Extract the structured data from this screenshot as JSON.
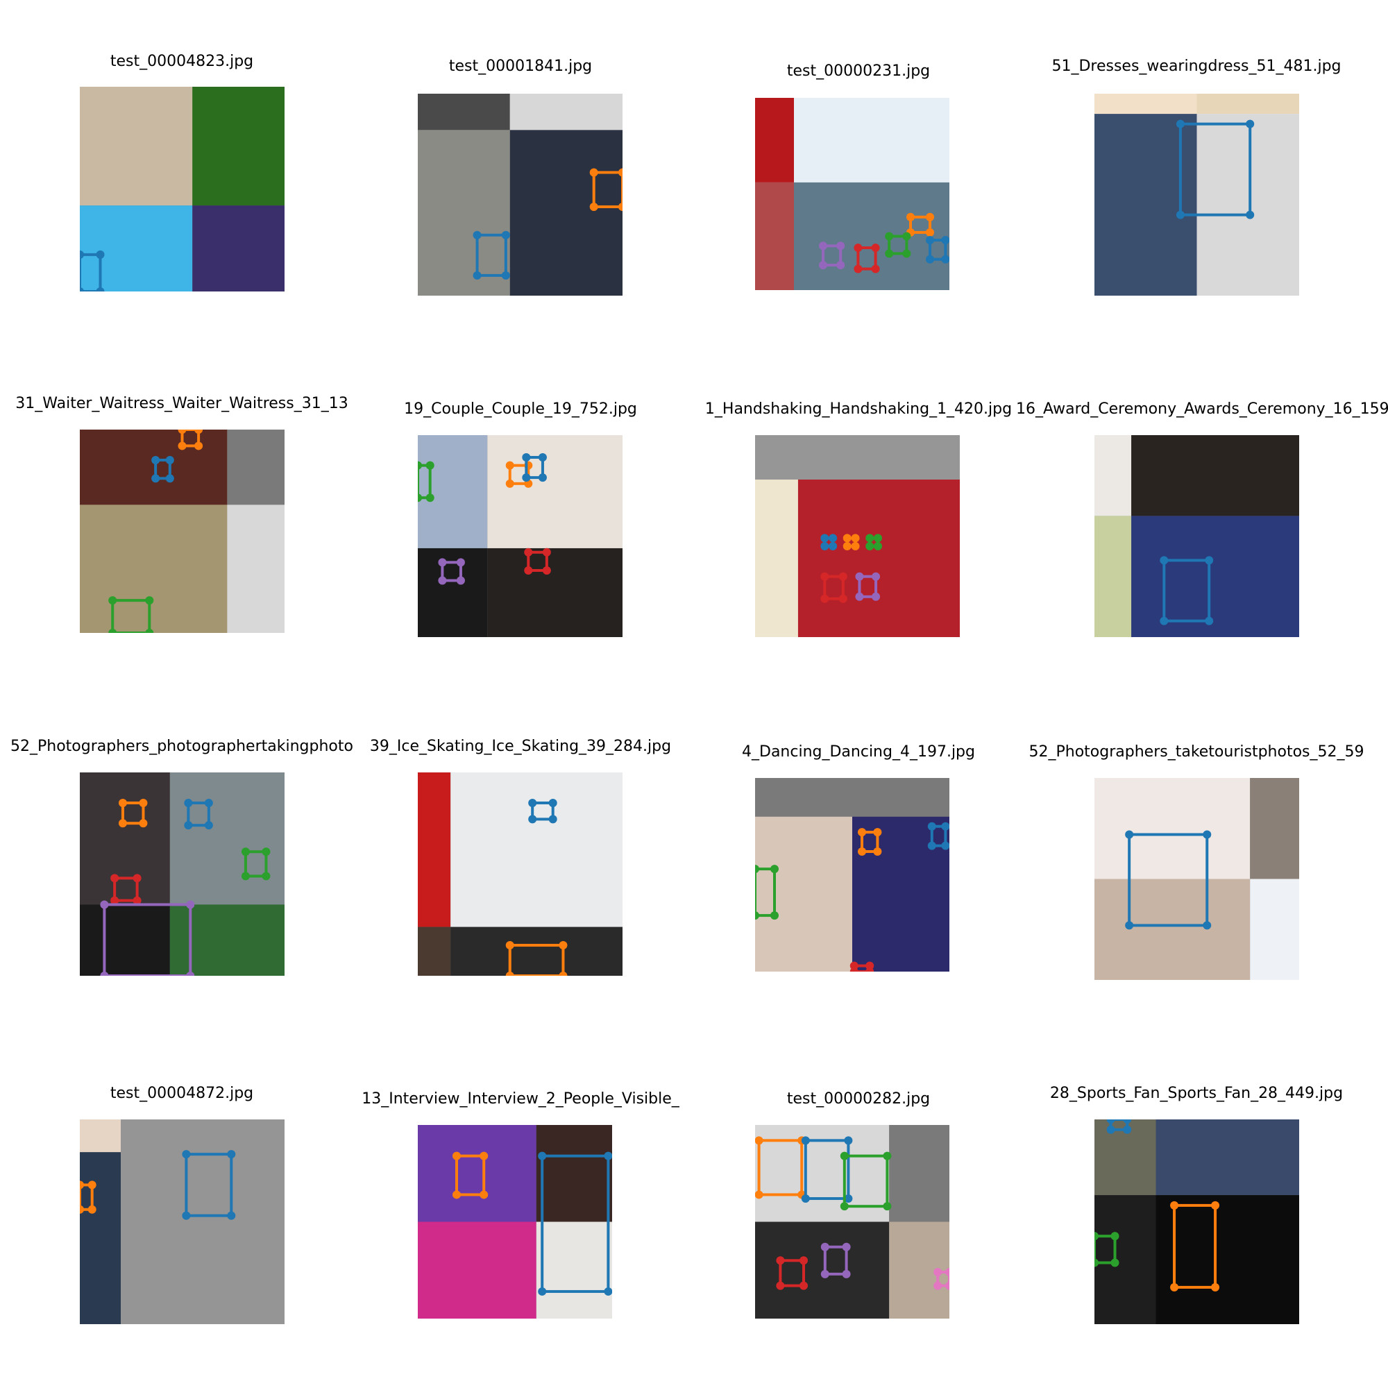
{
  "figure": {
    "background": "#ffffff",
    "panels": [
      {
        "title": "test_00004823.jpg",
        "bg": "#7a6a5c",
        "blocks": [
          [
            "#c9b9a2",
            "#2a6e1e"
          ],
          [
            "#3fb4e6",
            "#3a2f6a"
          ]
        ],
        "boxes": [
          {
            "color": "#1f77b4"
          }
        ]
      },
      {
        "title": "test_00001841.jpg",
        "bg": "#b9b6b0",
        "blocks": [
          [
            "#4a4a4a",
            "#d7d7d7"
          ],
          [
            "#8b8b86",
            "#2a3140"
          ]
        ],
        "boxes": [
          {
            "color": "#1f77b4"
          },
          {
            "color": "#ff7f0e"
          }
        ]
      },
      {
        "title": "test_00000231.jpg",
        "bg": "#d9e3ef",
        "blocks": [
          [
            "#b7181c",
            "#e6eef6"
          ],
          [
            "#b04a4a",
            "#5f7a8a"
          ]
        ],
        "boxes": [
          {
            "color": "#ff7f0e"
          },
          {
            "color": "#9467bd"
          },
          {
            "color": "#d62728"
          },
          {
            "color": "#2ca02c"
          },
          {
            "color": "#1f77b4"
          }
        ]
      },
      {
        "title": "51_Dresses_wearingdress_51_481.jpg",
        "bg": "#ffffff",
        "blocks": [
          [
            "#f2e0c8",
            "#e8d6b8"
          ],
          [
            "#3a4e6e",
            "#d9d9d9"
          ]
        ],
        "boxes": [
          {
            "color": "#1f77b4"
          }
        ]
      },
      {
        "title": "31_Waiter_Waitress_Waiter_Waitress_31_13",
        "bg": "#c8b99a",
        "blocks": [
          [
            "#5a2a22",
            "#7a7a7a"
          ],
          [
            "#a49671",
            "#d8d8d8"
          ]
        ],
        "boxes": [
          {
            "color": "#ff7f0e"
          },
          {
            "color": "#1f77b4"
          },
          {
            "color": "#2ca02c"
          }
        ]
      },
      {
        "title": "19_Couple_Couple_19_752.jpg",
        "bg": "#8c8c8c",
        "blocks": [
          [
            "#9fb0c8",
            "#e9e2da"
          ],
          [
            "#1a1a1a",
            "#262220"
          ]
        ],
        "boxes": [
          {
            "color": "#2ca02c"
          },
          {
            "color": "#ff7f0e"
          },
          {
            "color": "#1f77b4"
          },
          {
            "color": "#9467bd"
          },
          {
            "color": "#d62728"
          }
        ]
      },
      {
        "title": "1_Handshaking_Handshaking_1_420.jpg",
        "bg": "#969696",
        "blocks": [
          [
            "#969696",
            "#969696"
          ],
          [
            "#efe6d0",
            "#b5212a"
          ]
        ],
        "boxes": [
          {
            "color": "#1f77b4"
          },
          {
            "color": "#ff7f0e"
          },
          {
            "color": "#2ca02c"
          },
          {
            "color": "#d62728"
          },
          {
            "color": "#9467bd"
          }
        ]
      },
      {
        "title": "16_Award_Ceremony_Awards_Ceremony_16_159",
        "bg": "#8d8d8d",
        "blocks": [
          [
            "#ece8e4",
            "#2a2420"
          ],
          [
            "#c8d0a0",
            "#2b3a7a"
          ]
        ],
        "boxes": [
          {
            "color": "#1f77b4"
          }
        ]
      },
      {
        "title": "52_Photographers_photographertakingphoto",
        "bg": "#565456",
        "blocks": [
          [
            "#3a3436",
            "#7e8a8e"
          ],
          [
            "#1a1a1a",
            "#2f6b32"
          ]
        ],
        "boxes": [
          {
            "color": "#ff7f0e"
          },
          {
            "color": "#1f77b4"
          },
          {
            "color": "#2ca02c"
          },
          {
            "color": "#d62728"
          },
          {
            "color": "#9467bd"
          }
        ]
      },
      {
        "title": "39_Ice_Skating_Ice_Skating_39_284.jpg",
        "bg": "#686868",
        "blocks": [
          [
            "#c81c1c",
            "#e9ebed"
          ],
          [
            "#4a3a30",
            "#2a2a2a"
          ]
        ],
        "boxes": [
          {
            "color": "#1f77b4"
          },
          {
            "color": "#ff7f0e"
          }
        ]
      },
      {
        "title": "4_Dancing_Dancing_4_197.jpg",
        "bg": "#7a7a7a",
        "blocks": [
          [
            "#7a7a7a",
            "#7a7a7a"
          ],
          [
            "#d8c6b8",
            "#2c2a6a"
          ]
        ],
        "boxes": [
          {
            "color": "#2ca02c"
          },
          {
            "color": "#ff7f0e"
          },
          {
            "color": "#1f77b4"
          },
          {
            "color": "#d62728"
          }
        ]
      },
      {
        "title": "52_Photographers_taketouristphotos_52_59",
        "bg": "#808080",
        "blocks": [
          [
            "#f0e8e4",
            "#8a8078"
          ],
          [
            "#c8b4a4",
            "#eef2f6"
          ]
        ],
        "boxes": [
          {
            "color": "#1f77b4"
          }
        ]
      },
      {
        "title": "test_00004872.jpg",
        "bg": "#959595",
        "blocks": [
          [
            "#e6d4c4",
            "#959595"
          ],
          [
            "#2a3a50",
            "#959595"
          ]
        ],
        "boxes": [
          {
            "color": "#ff7f0e"
          },
          {
            "color": "#1f77b4"
          }
        ]
      },
      {
        "title": "13_Interview_Interview_2_People_Visible_",
        "bg": "#7d7d7d",
        "blocks": [
          [
            "#6a3aa8",
            "#3a2622"
          ],
          [
            "#d02a8a",
            "#e8e6e2"
          ]
        ],
        "boxes": [
          {
            "color": "#ff7f0e"
          },
          {
            "color": "#1f77b4"
          }
        ]
      },
      {
        "title": "test_00000282.jpg",
        "bg": "#9a9a9a",
        "blocks": [
          [
            "#d8d8d8",
            "#7a7a7a"
          ],
          [
            "#2a2a2a",
            "#b8a898"
          ]
        ],
        "boxes": [
          {
            "color": "#ff7f0e"
          },
          {
            "color": "#1f77b4"
          },
          {
            "color": "#2ca02c"
          },
          {
            "color": "#d62728"
          },
          {
            "color": "#9467bd"
          },
          {
            "color": "#e377c2"
          }
        ]
      },
      {
        "title": "28_Sports_Fan_Sports_Fan_28_449.jpg",
        "bg": "#3a3a3a",
        "blocks": [
          [
            "#6a6a5a",
            "#3a4a6a"
          ],
          [
            "#1e1e1e",
            "#0c0c0c"
          ]
        ],
        "boxes": [
          {
            "color": "#1f77b4"
          },
          {
            "color": "#2ca02c"
          },
          {
            "color": "#ff7f0e"
          }
        ]
      }
    ]
  }
}
